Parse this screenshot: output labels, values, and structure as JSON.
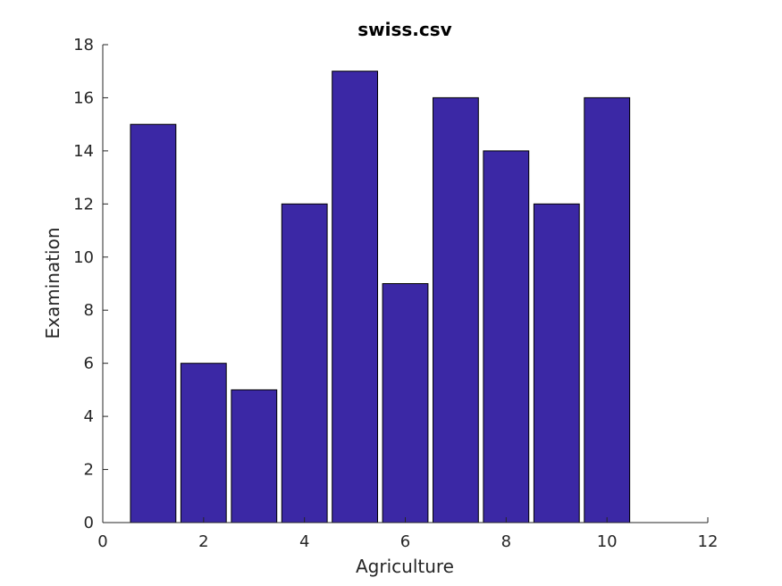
{
  "chart_data": {
    "type": "bar",
    "title": "swiss.csv",
    "xlabel": "Agriculture",
    "ylabel": "Examination",
    "x": [
      1,
      2,
      3,
      4,
      5,
      6,
      7,
      8,
      9,
      10
    ],
    "values": [
      15,
      6,
      5,
      12,
      17,
      9,
      16,
      14,
      12,
      16
    ],
    "bar_width": 0.9,
    "xlim": [
      0,
      12
    ],
    "ylim": [
      0,
      18
    ],
    "xticks": [
      0,
      2,
      4,
      6,
      8,
      10,
      12
    ],
    "yticks": [
      0,
      2,
      4,
      6,
      8,
      10,
      12,
      14,
      16,
      18
    ],
    "grid": false,
    "bar_color": "#3b28a5",
    "edge_color": "#000000"
  }
}
